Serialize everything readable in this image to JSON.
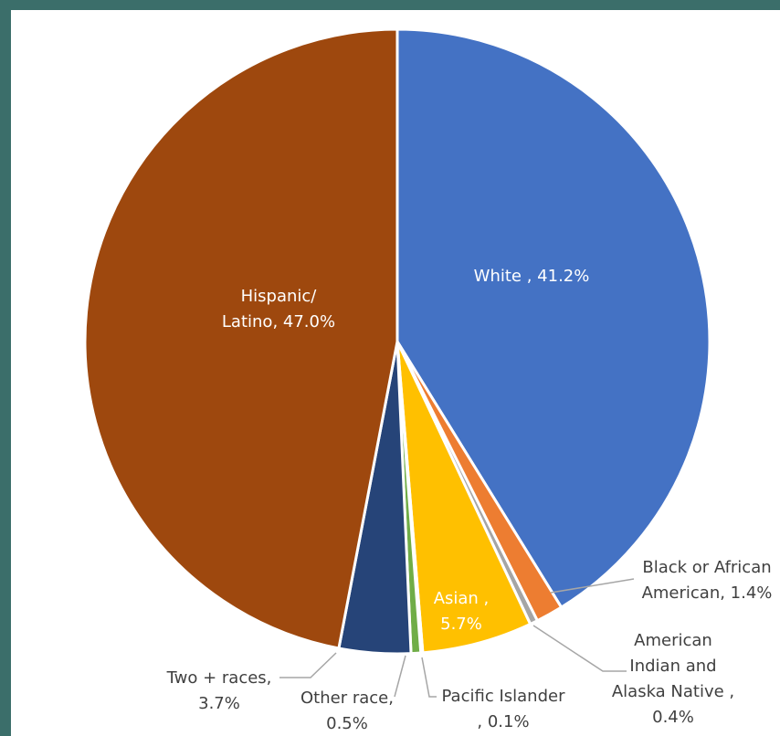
{
  "chart_data": {
    "type": "pie",
    "slices": [
      {
        "label": "White",
        "value": 41.2,
        "color": "#4472c4",
        "text_lines": [
          "White , 41.2%"
        ]
      },
      {
        "label": "Black or African American",
        "value": 1.4,
        "color": "#ed7d31",
        "text_lines": [
          "Black or African",
          "American, 1.4%"
        ]
      },
      {
        "label": "American Indian and Alaska Native",
        "value": 0.4,
        "color": "#a5a5a5",
        "text_lines": [
          "American",
          "Indian and",
          "Alaska Native ,",
          "0.4%"
        ]
      },
      {
        "label": "Asian",
        "value": 5.7,
        "color": "#ffc000",
        "text_lines": [
          "Asian ,",
          "5.7%"
        ]
      },
      {
        "label": "Pacific Islander",
        "value": 0.1,
        "color": "#5b9bd5",
        "text_lines": [
          "Pacific Islander",
          ", 0.1%"
        ]
      },
      {
        "label": "Other race",
        "value": 0.5,
        "color": "#70ad47",
        "text_lines": [
          "Other race,",
          "0.5%"
        ]
      },
      {
        "label": "Two + races",
        "value": 3.7,
        "color": "#264478",
        "text_lines": [
          "Two + races,",
          "3.7%"
        ]
      },
      {
        "label": "Hispanic/ Latino",
        "value": 47.0,
        "color": "#9e480e",
        "text_lines": [
          "Hispanic/",
          "Latino, 47.0%"
        ]
      }
    ]
  }
}
